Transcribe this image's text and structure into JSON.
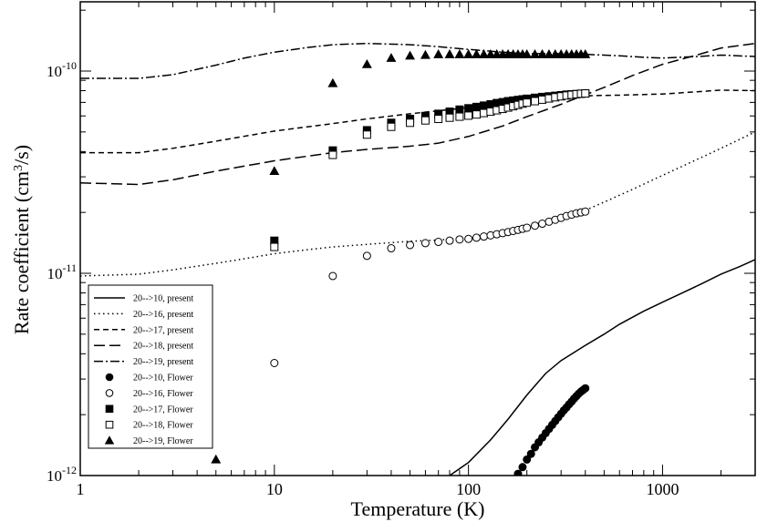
{
  "chart_data": {
    "type": "scatter",
    "xlabel": "Temperature (K)",
    "ylabel": "Rate coefficient (cm^3/s)",
    "ylabel_parts": {
      "pre": "Rate coefficient (cm",
      "sup": "3",
      "post": "/s)"
    },
    "x_scale": "log",
    "y_scale": "log",
    "xlim": [
      1,
      3000
    ],
    "ylim": [
      1e-12,
      2.2e-10
    ],
    "x_ticks": [
      {
        "value": 1,
        "label": "1"
      },
      {
        "value": 10,
        "label": "10"
      },
      {
        "value": 100,
        "label": "100"
      },
      {
        "value": 1000,
        "label": "1000"
      }
    ],
    "y_ticks": [
      {
        "value": 1e-12,
        "base": "10",
        "exp": "-12"
      },
      {
        "value": 1e-11,
        "base": "10",
        "exp": "-11"
      },
      {
        "value": 1e-10,
        "base": "10",
        "exp": "-10"
      }
    ],
    "grid": false,
    "legend_position": "bottom-left",
    "lines": [
      {
        "name": "20-->10, present",
        "dash": "solid",
        "points": [
          [
            80,
            1e-12
          ],
          [
            100,
            1.16e-12
          ],
          [
            130,
            1.5e-12
          ],
          [
            160,
            1.9e-12
          ],
          [
            200,
            2.5e-12
          ],
          [
            250,
            3.2e-12
          ],
          [
            300,
            3.7e-12
          ],
          [
            400,
            4.4e-12
          ],
          [
            500,
            5e-12
          ],
          [
            600,
            5.6e-12
          ],
          [
            800,
            6.5e-12
          ],
          [
            1000,
            7.2e-12
          ],
          [
            1300,
            8.1e-12
          ],
          [
            1600,
            8.9e-12
          ],
          [
            2000,
            9.9e-12
          ],
          [
            2500,
            1.08e-11
          ],
          [
            3000,
            1.17e-11
          ]
        ]
      },
      {
        "name": "20-->16, present",
        "dash": "dotted",
        "points": [
          [
            1,
            9.7e-12
          ],
          [
            2,
            9.9e-12
          ],
          [
            3,
            1.04e-11
          ],
          [
            5,
            1.12e-11
          ],
          [
            7,
            1.18e-11
          ],
          [
            10,
            1.25e-11
          ],
          [
            15,
            1.31e-11
          ],
          [
            20,
            1.35e-11
          ],
          [
            30,
            1.39e-11
          ],
          [
            50,
            1.44e-11
          ],
          [
            70,
            1.46e-11
          ],
          [
            100,
            1.5e-11
          ],
          [
            150,
            1.57e-11
          ],
          [
            200,
            1.66e-11
          ],
          [
            300,
            1.85e-11
          ],
          [
            400,
            2.05e-11
          ],
          [
            500,
            2.25e-11
          ],
          [
            700,
            2.6e-11
          ],
          [
            1000,
            3.05e-11
          ],
          [
            1500,
            3.65e-11
          ],
          [
            2000,
            4.15e-11
          ],
          [
            2500,
            4.6e-11
          ],
          [
            3000,
            5e-11
          ]
        ]
      },
      {
        "name": "20-->17, present",
        "dash": "dashed",
        "points": [
          [
            1,
            3.95e-11
          ],
          [
            2,
            3.95e-11
          ],
          [
            3,
            4.15e-11
          ],
          [
            5,
            4.5e-11
          ],
          [
            10,
            5.05e-11
          ],
          [
            20,
            5.5e-11
          ],
          [
            30,
            5.8e-11
          ],
          [
            50,
            6.15e-11
          ],
          [
            100,
            6.6e-11
          ],
          [
            200,
            7.05e-11
          ],
          [
            300,
            7.35e-11
          ],
          [
            400,
            7.55e-11
          ],
          [
            600,
            7.6e-11
          ],
          [
            1000,
            7.7e-11
          ],
          [
            1500,
            7.9e-11
          ],
          [
            2000,
            8.05e-11
          ],
          [
            3000,
            8e-11
          ]
        ]
      },
      {
        "name": "20-->18, present",
        "dash": "longdash",
        "points": [
          [
            1,
            2.8e-11
          ],
          [
            2,
            2.75e-11
          ],
          [
            3,
            2.9e-11
          ],
          [
            5,
            3.2e-11
          ],
          [
            10,
            3.6e-11
          ],
          [
            20,
            3.95e-11
          ],
          [
            30,
            4.1e-11
          ],
          [
            50,
            4.25e-11
          ],
          [
            70,
            4.4e-11
          ],
          [
            100,
            4.75e-11
          ],
          [
            150,
            5.35e-11
          ],
          [
            200,
            5.95e-11
          ],
          [
            300,
            6.85e-11
          ],
          [
            500,
            8.3e-11
          ],
          [
            700,
            9.5e-11
          ],
          [
            1000,
            1.08e-10
          ],
          [
            1500,
            1.2e-10
          ],
          [
            2000,
            1.3e-10
          ],
          [
            3000,
            1.37e-10
          ]
        ]
      },
      {
        "name": "20-->19, present",
        "dash": "dashdot",
        "points": [
          [
            1,
            9.2e-11
          ],
          [
            2,
            9.2e-11
          ],
          [
            3,
            9.6e-11
          ],
          [
            5,
            1.07e-10
          ],
          [
            7,
            1.16e-10
          ],
          [
            10,
            1.24e-10
          ],
          [
            15,
            1.31e-10
          ],
          [
            20,
            1.35e-10
          ],
          [
            30,
            1.37e-10
          ],
          [
            50,
            1.35e-10
          ],
          [
            70,
            1.32e-10
          ],
          [
            100,
            1.28e-10
          ],
          [
            150,
            1.24e-10
          ],
          [
            200,
            1.22e-10
          ],
          [
            300,
            1.22e-10
          ],
          [
            400,
            1.21e-10
          ],
          [
            600,
            1.19e-10
          ],
          [
            800,
            1.17e-10
          ],
          [
            1000,
            1.16e-10
          ],
          [
            1500,
            1.18e-10
          ],
          [
            2000,
            1.2e-10
          ],
          [
            3000,
            1.18e-10
          ]
        ]
      }
    ],
    "markers": [
      {
        "name": "20-->10, Flower",
        "symbol": "circle",
        "filled": true,
        "points": [
          [
            180,
            1.02e-12
          ],
          [
            190,
            1.1e-12
          ],
          [
            200,
            1.2e-12
          ],
          [
            210,
            1.28e-12
          ],
          [
            220,
            1.38e-12
          ],
          [
            230,
            1.46e-12
          ],
          [
            240,
            1.54e-12
          ],
          [
            250,
            1.62e-12
          ],
          [
            260,
            1.7e-12
          ],
          [
            270,
            1.78e-12
          ],
          [
            280,
            1.86e-12
          ],
          [
            290,
            1.94e-12
          ],
          [
            300,
            2.02e-12
          ],
          [
            310,
            2.1e-12
          ],
          [
            320,
            2.17e-12
          ],
          [
            330,
            2.25e-12
          ],
          [
            340,
            2.32e-12
          ],
          [
            350,
            2.4e-12
          ],
          [
            360,
            2.47e-12
          ],
          [
            370,
            2.54e-12
          ],
          [
            380,
            2.6e-12
          ],
          [
            390,
            2.65e-12
          ],
          [
            400,
            2.7e-12
          ]
        ]
      },
      {
        "name": "20-->16, Flower",
        "symbol": "circle",
        "filled": false,
        "points": [
          [
            10,
            3.6e-12
          ],
          [
            20,
            9.7e-12
          ],
          [
            30,
            1.22e-11
          ],
          [
            40,
            1.33e-11
          ],
          [
            50,
            1.38e-11
          ],
          [
            60,
            1.41e-11
          ],
          [
            70,
            1.43e-11
          ],
          [
            80,
            1.45e-11
          ],
          [
            90,
            1.47e-11
          ],
          [
            100,
            1.48e-11
          ],
          [
            110,
            1.5e-11
          ],
          [
            120,
            1.52e-11
          ],
          [
            130,
            1.54e-11
          ],
          [
            140,
            1.56e-11
          ],
          [
            150,
            1.58e-11
          ],
          [
            160,
            1.6e-11
          ],
          [
            170,
            1.62e-11
          ],
          [
            180,
            1.64e-11
          ],
          [
            190,
            1.66e-11
          ],
          [
            200,
            1.68e-11
          ],
          [
            220,
            1.72e-11
          ],
          [
            240,
            1.76e-11
          ],
          [
            260,
            1.8e-11
          ],
          [
            280,
            1.84e-11
          ],
          [
            300,
            1.88e-11
          ],
          [
            320,
            1.92e-11
          ],
          [
            340,
            1.95e-11
          ],
          [
            360,
            1.98e-11
          ],
          [
            380,
            2e-11
          ],
          [
            400,
            2.02e-11
          ]
        ]
      },
      {
        "name": "20-->17, Flower",
        "symbol": "square",
        "filled": true,
        "points": [
          [
            10,
            1.45e-11
          ],
          [
            20,
            4.05e-11
          ],
          [
            30,
            5.1e-11
          ],
          [
            40,
            5.55e-11
          ],
          [
            50,
            5.8e-11
          ],
          [
            60,
            6e-11
          ],
          [
            70,
            6.15e-11
          ],
          [
            80,
            6.3e-11
          ],
          [
            90,
            6.45e-11
          ],
          [
            100,
            6.55e-11
          ],
          [
            110,
            6.65e-11
          ],
          [
            120,
            6.75e-11
          ],
          [
            130,
            6.85e-11
          ],
          [
            140,
            6.95e-11
          ],
          [
            150,
            7.02e-11
          ],
          [
            160,
            7.1e-11
          ],
          [
            170,
            7.15e-11
          ],
          [
            180,
            7.2e-11
          ],
          [
            190,
            7.25e-11
          ],
          [
            200,
            7.3e-11
          ],
          [
            220,
            7.38e-11
          ],
          [
            240,
            7.45e-11
          ],
          [
            260,
            7.5e-11
          ],
          [
            280,
            7.55e-11
          ],
          [
            300,
            7.6e-11
          ],
          [
            320,
            7.65e-11
          ],
          [
            340,
            7.68e-11
          ],
          [
            360,
            7.7e-11
          ],
          [
            380,
            7.73e-11
          ],
          [
            400,
            7.75e-11
          ]
        ]
      },
      {
        "name": "20-->18, Flower",
        "symbol": "square",
        "filled": false,
        "points": [
          [
            10,
            1.35e-11
          ],
          [
            20,
            3.85e-11
          ],
          [
            30,
            4.85e-11
          ],
          [
            40,
            5.3e-11
          ],
          [
            50,
            5.55e-11
          ],
          [
            60,
            5.7e-11
          ],
          [
            70,
            5.8e-11
          ],
          [
            80,
            5.88e-11
          ],
          [
            90,
            5.95e-11
          ],
          [
            100,
            6.02e-11
          ],
          [
            110,
            6.1e-11
          ],
          [
            120,
            6.2e-11
          ],
          [
            130,
            6.3e-11
          ],
          [
            140,
            6.4e-11
          ],
          [
            150,
            6.5e-11
          ],
          [
            160,
            6.6e-11
          ],
          [
            170,
            6.7e-11
          ],
          [
            180,
            6.8e-11
          ],
          [
            190,
            6.9e-11
          ],
          [
            200,
            6.98e-11
          ],
          [
            220,
            7.1e-11
          ],
          [
            240,
            7.22e-11
          ],
          [
            260,
            7.32e-11
          ],
          [
            280,
            7.42e-11
          ],
          [
            300,
            7.5e-11
          ],
          [
            320,
            7.57e-11
          ],
          [
            340,
            7.63e-11
          ],
          [
            360,
            7.68e-11
          ],
          [
            380,
            7.72e-11
          ],
          [
            400,
            7.75e-11
          ]
        ]
      },
      {
        "name": "20-->19, Flower",
        "symbol": "triangle",
        "filled": true,
        "points": [
          [
            5,
            1.2e-12
          ],
          [
            10,
            3.2e-11
          ],
          [
            20,
            8.7e-11
          ],
          [
            30,
            1.08e-10
          ],
          [
            40,
            1.16e-10
          ],
          [
            50,
            1.19e-10
          ],
          [
            60,
            1.2e-10
          ],
          [
            70,
            1.21e-10
          ],
          [
            80,
            1.21e-10
          ],
          [
            90,
            1.21e-10
          ],
          [
            100,
            1.21e-10
          ],
          [
            110,
            1.21e-10
          ],
          [
            120,
            1.21e-10
          ],
          [
            130,
            1.21e-10
          ],
          [
            140,
            1.21e-10
          ],
          [
            150,
            1.21e-10
          ],
          [
            160,
            1.21e-10
          ],
          [
            170,
            1.21e-10
          ],
          [
            180,
            1.21e-10
          ],
          [
            190,
            1.21e-10
          ],
          [
            200,
            1.21e-10
          ],
          [
            220,
            1.21e-10
          ],
          [
            240,
            1.21e-10
          ],
          [
            260,
            1.21e-10
          ],
          [
            280,
            1.21e-10
          ],
          [
            300,
            1.21e-10
          ],
          [
            320,
            1.21e-10
          ],
          [
            340,
            1.21e-10
          ],
          [
            360,
            1.21e-10
          ],
          [
            380,
            1.21e-10
          ],
          [
            400,
            1.21e-10
          ]
        ]
      }
    ]
  }
}
